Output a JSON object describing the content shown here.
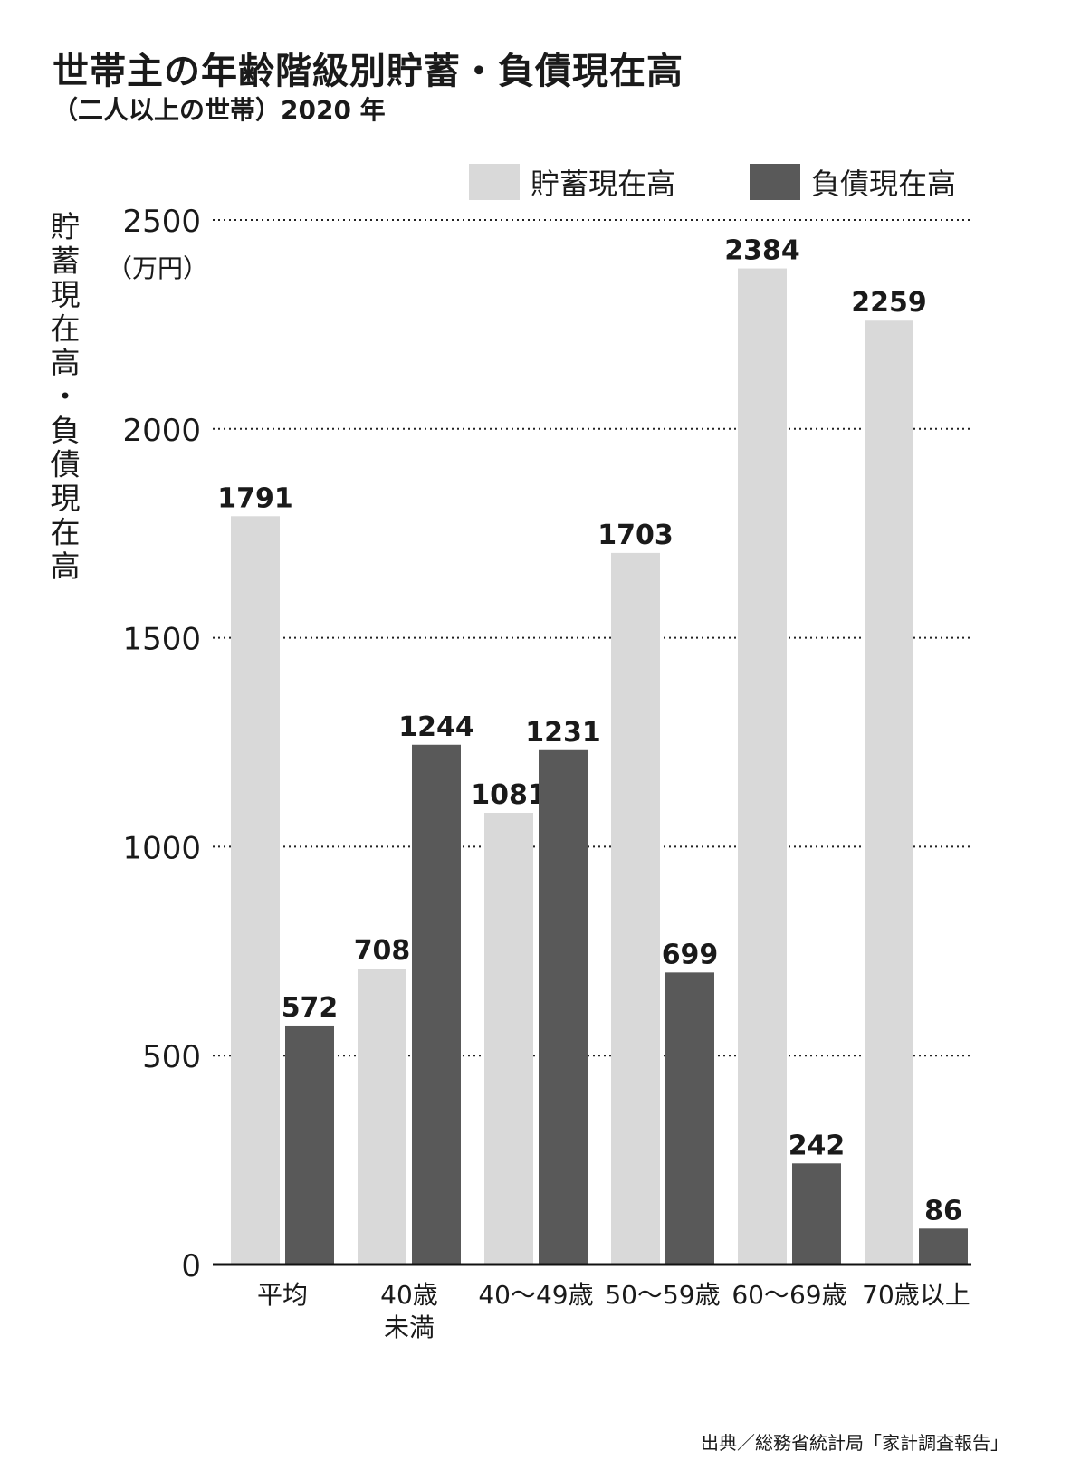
{
  "title": "世帯主の年齢階級別貯蓄・負債現在高",
  "subtitle": "（二人以上の世帯）2020 年",
  "source": "出典／総務省統計局「家計調査報告」",
  "chart_data": {
    "type": "bar",
    "ylabel": "貯蓄現在高・負債現在高",
    "unit": "（万円）",
    "ylim": [
      0,
      2500
    ],
    "yticks": [
      0,
      500,
      1000,
      1500,
      2000,
      2500
    ],
    "grid": true,
    "legend_position": "top-right",
    "categories": [
      {
        "label": "平均"
      },
      {
        "label": "40歳\n未満"
      },
      {
        "label": "40～49歳"
      },
      {
        "label": "50～59歳"
      },
      {
        "label": "60～69歳"
      },
      {
        "label": "70歳以上"
      }
    ],
    "series": [
      {
        "name": "貯蓄現在高",
        "color": "#d9d9d9",
        "values": [
          1791,
          708,
          1081,
          1703,
          2384,
          2259
        ]
      },
      {
        "name": "負債現在高",
        "color": "#595959",
        "values": [
          572,
          1244,
          1231,
          699,
          242,
          86
        ]
      }
    ]
  }
}
